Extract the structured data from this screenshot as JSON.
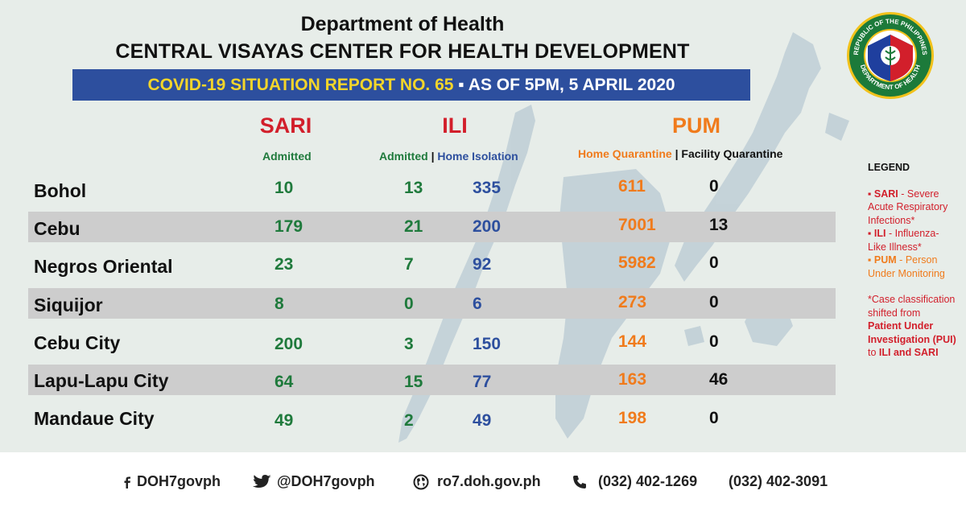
{
  "header": {
    "line1": "Department of Health",
    "line2": "CENTRAL VISAYAS CENTER FOR HEALTH DEVELOPMENT"
  },
  "banner": {
    "part1": "COVID-19 SITUATION REPORT NO. 65",
    "separator": "▪",
    "part2": "AS OF 5PM, 5 APRIL 2020"
  },
  "seal": {
    "icon": "doh-seal-icon",
    "top_text": "REPUBLIC OF THE PHILIPPINES",
    "bottom_text": "DEPARTMENT OF HEALTH"
  },
  "groups": {
    "sari": "SARI",
    "ili": "ILI",
    "pum": "PUM"
  },
  "subheaders": {
    "sari_admitted": "Admitted",
    "ili_admitted": "Admitted",
    "ili_sep": "|",
    "ili_home": "Home Isolation",
    "pum_home": "Home Quarantine",
    "pum_sep": "|",
    "pum_facility": "Facility Quarantine"
  },
  "rows": [
    {
      "name": "Bohol",
      "sari_admitted": "10",
      "ili_admitted": "13",
      "ili_home": "335",
      "pum_home": "611",
      "pum_facility": "0"
    },
    {
      "name": "Cebu",
      "sari_admitted": "179",
      "ili_admitted": "21",
      "ili_home": "200",
      "pum_home": "7001",
      "pum_facility": "13"
    },
    {
      "name": "Negros Oriental",
      "sari_admitted": "23",
      "ili_admitted": "7",
      "ili_home": "92",
      "pum_home": "5982",
      "pum_facility": "0"
    },
    {
      "name": "Siquijor",
      "sari_admitted": "8",
      "ili_admitted": "0",
      "ili_home": "6",
      "pum_home": "273",
      "pum_facility": "0"
    },
    {
      "name": "Cebu City",
      "sari_admitted": "200",
      "ili_admitted": "3",
      "ili_home": "150",
      "pum_home": "144",
      "pum_facility": "0"
    },
    {
      "name": "Lapu-Lapu City",
      "sari_admitted": "64",
      "ili_admitted": "15",
      "ili_home": "77",
      "pum_home": "163",
      "pum_facility": "46"
    },
    {
      "name": "Mandaue City",
      "sari_admitted": "49",
      "ili_admitted": "2",
      "ili_home": "49",
      "pum_home": "198",
      "pum_facility": "0"
    }
  ],
  "legend": {
    "title": "LEGEND",
    "sari_key": "▪ SARI",
    "sari_desc": "Severe Acute Respiratory Infections*",
    "ili_key": "▪ ILI",
    "ili_desc": "Influenza-Like Illness*",
    "pum_key": "▪ PUM",
    "pum_desc": "Person Under Monitoring",
    "note_prefix": "*Case classification shifted from",
    "note_pui": "Patient Under Investigation (PUI)",
    "note_to": "to",
    "note_end": "ILI and SARI"
  },
  "footer": {
    "facebook": "DOH7govph",
    "twitter": "@DOH7govph",
    "website": "ro7.doh.gov.ph",
    "phone1": "(032) 402-1269",
    "phone2": "(032) 402-3091"
  },
  "colors": {
    "banner_bg": "#2d4f9e",
    "banner_highlight": "#f3d52a",
    "sari_ili_red": "#d21f2b",
    "pum_orange": "#f07b1c",
    "admitted_green": "#1f7a3c",
    "isolation_blue": "#2d4f9e",
    "row_band": "#cdcdcd",
    "background": "#e7ede9"
  }
}
